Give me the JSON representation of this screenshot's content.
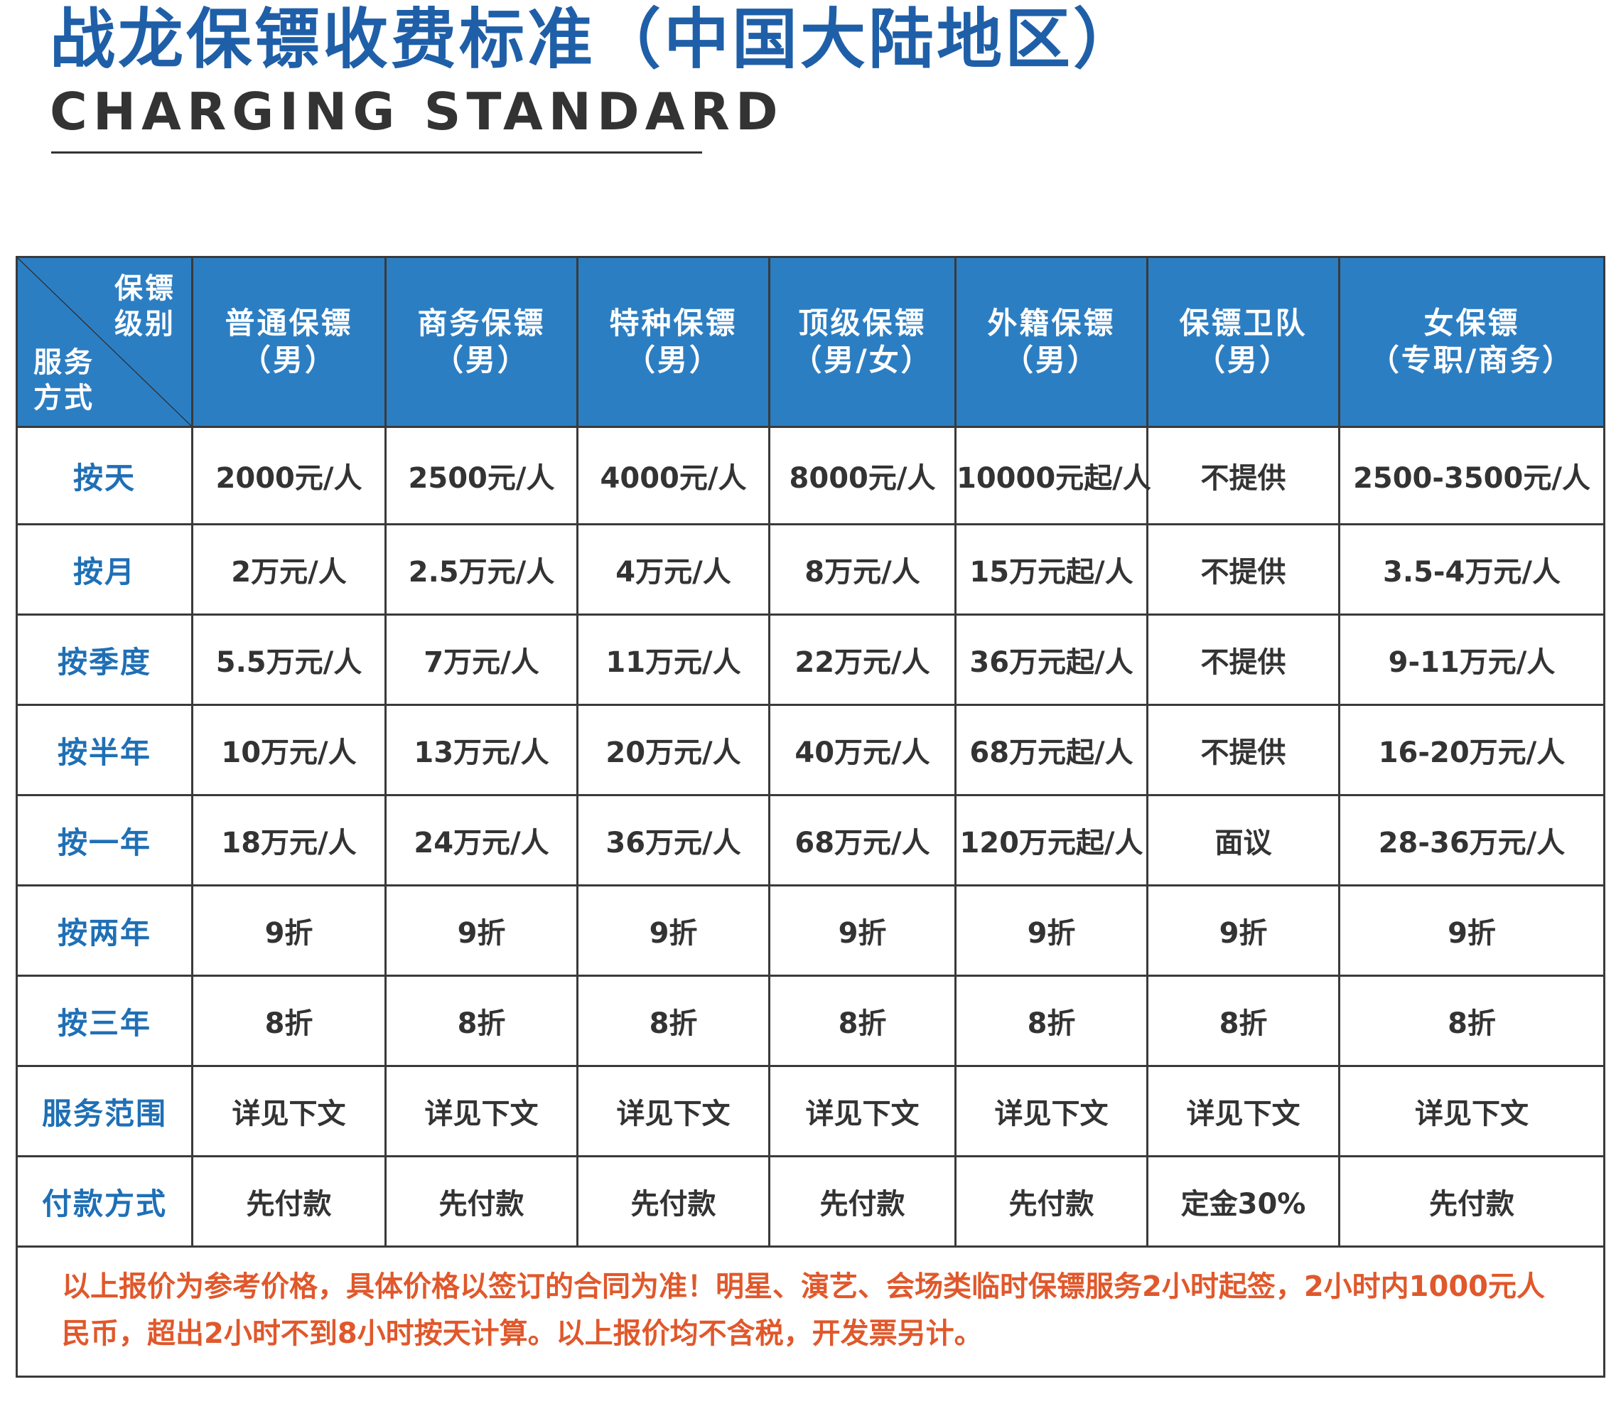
{
  "title": {
    "cn": "战龙保镖收费标准（中国大陆地区）",
    "en": "CHARGING STANDARD"
  },
  "table": {
    "corner": {
      "top_line1": "保镖",
      "top_line2": "级别",
      "bottom_line1": "服务",
      "bottom_line2": "方式"
    },
    "headers": [
      {
        "line1": "普通保镖",
        "line2": "（男）"
      },
      {
        "line1": "商务保镖",
        "line2": "（男）"
      },
      {
        "line1": "特种保镖",
        "line2": "（男）"
      },
      {
        "line1": "顶级保镖",
        "line2": "（男/女）"
      },
      {
        "line1": "外籍保镖",
        "line2": "（男）"
      },
      {
        "line1": "保镖卫队",
        "line2": "（男）"
      },
      {
        "line1": "女保镖",
        "line2": "（专职/商务）"
      }
    ],
    "rows": [
      {
        "label": "按天",
        "cells": [
          "2000元/人",
          "2500元/人",
          "4000元/人",
          "8000元/人",
          "10000元起/人",
          "不提供",
          "2500-3500元/人"
        ]
      },
      {
        "label": "按月",
        "cells": [
          "2万元/人",
          "2.5万元/人",
          "4万元/人",
          "8万元/人",
          "15万元起/人",
          "不提供",
          "3.5-4万元/人"
        ]
      },
      {
        "label": "按季度",
        "cells": [
          "5.5万元/人",
          "7万元/人",
          "11万元/人",
          "22万元/人",
          "36万元起/人",
          "不提供",
          "9-11万元/人"
        ]
      },
      {
        "label": "按半年",
        "cells": [
          "10万元/人",
          "13万元/人",
          "20万元/人",
          "40万元/人",
          "68万元起/人",
          "不提供",
          "16-20万元/人"
        ]
      },
      {
        "label": "按一年",
        "cells": [
          "18万元/人",
          "24万元/人",
          "36万元/人",
          "68万元/人",
          "120万元起/人",
          "面议",
          "28-36万元/人"
        ]
      },
      {
        "label": "按两年",
        "cells": [
          "9折",
          "9折",
          "9折",
          "9折",
          "9折",
          "9折",
          "9折"
        ]
      },
      {
        "label": "按三年",
        "cells": [
          "8折",
          "8折",
          "8折",
          "8折",
          "8折",
          "8折",
          "8折"
        ]
      },
      {
        "label": "服务范围",
        "cells": [
          "详见下文",
          "详见下文",
          "详见下文",
          "详见下文",
          "详见下文",
          "详见下文",
          "详见下文"
        ]
      },
      {
        "label": "付款方式",
        "cells": [
          "先付款",
          "先付款",
          "先付款",
          "先付款",
          "先付款",
          "定金30%",
          "先付款"
        ]
      }
    ],
    "note": "以上报价为参考价格，具体价格以签订的合同为准！明星、演艺、会场类临时保镖服务2小时起签，2小时内1000元人民币，超出2小时不到8小时按天计算。以上报价均不含税，开发票另计。"
  },
  "colors": {
    "title_blue": "#1f5fa8",
    "header_blue": "#2c7ec3",
    "row_label_blue": "#1f6fb5",
    "note_orange": "#e0582b"
  }
}
